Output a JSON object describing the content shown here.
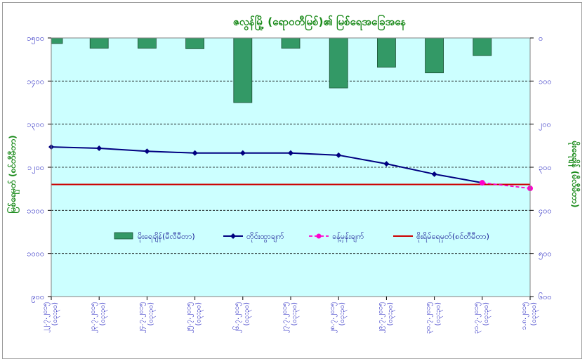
{
  "chart_data": {
    "type": "bar+line",
    "title": "ဇလွန်မြို့ (ရောဝတီမြစ်)၏ မြစ်ရေအခြေအနေ",
    "categories": [
      "၂၂.၇.၂၀၁၅",
      "၂၃.၇.၂၀၁၅",
      "၂၄.၇.၂၀၁၅",
      "၂၅.၇.၂၀၁၅",
      "၂၆.၇.၂၀၁၅",
      "၂၇.၇.၂၀၁၅",
      "၂၈.၇.၂၀၁၅",
      "၂၉.၇.၂၀၁၅",
      "၃၀.၇.၂၀၁၅",
      "၃၁.၇.၂၀၁၅",
      "၁.၈.၂၀၁၅"
    ],
    "time_note": "(၀၃:၃၀)",
    "y_left": {
      "label": "မြစ်ရေမှတ် (စင်တီမီတာ)",
      "range": [
        900,
        1500
      ],
      "ticks": [
        900,
        1000,
        1100,
        1200,
        1300,
        1400,
        1500
      ],
      "tick_labels": [
        "၉၀၀",
        "၁၀၀၀",
        "၁၁၀၀",
        "၁၂၀၀",
        "၁၃၀၀",
        "၁၄၀၀",
        "၁၅၀၀"
      ]
    },
    "y_right": {
      "label": "မိုးရေချိန် (မီလီမီတာ)",
      "range": [
        0,
        600
      ],
      "reversed": true,
      "ticks": [
        0,
        100,
        200,
        300,
        400,
        500,
        600
      ],
      "tick_labels": [
        "၀",
        "၁၀၀",
        "၂၀၀",
        "၃၀၀",
        "၄၀၀",
        "၅၀၀",
        "၆၀၀"
      ]
    },
    "series": [
      {
        "name": "မိုးရေချိန်(မီလီမီတာ)",
        "type": "bar",
        "axis": "right",
        "color": "#339966",
        "values": [
          13,
          24,
          24,
          25,
          150,
          24,
          116,
          68,
          81,
          41,
          null
        ]
      },
      {
        "name": "တိုင်းထွာချက်",
        "type": "line",
        "axis": "left",
        "color": "#000080",
        "values": [
          1247,
          1244,
          1237,
          1233,
          1233,
          1233,
          1228,
          1208,
          1184,
          1164,
          null
        ]
      },
      {
        "name": "ခန့်မှန်းချက်",
        "type": "line-dashed",
        "axis": "left",
        "color": "#ff00cc",
        "values": [
          null,
          null,
          null,
          null,
          null,
          null,
          null,
          null,
          null,
          1164,
          1151
        ]
      },
      {
        "name": "စိုးရိမ်ရေမှတ်(စင်တီမီတာ)",
        "type": "hline",
        "axis": "left",
        "color": "#cc0000",
        "value": 1160
      }
    ],
    "grid": true,
    "legend_position": "bottom-inside",
    "plot_background": "#ccffff"
  }
}
